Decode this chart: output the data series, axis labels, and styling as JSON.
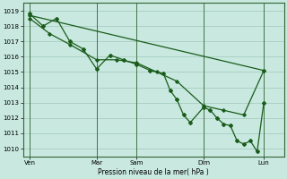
{
  "background_color": "#c8e8e0",
  "grid_color": "#a0c8b8",
  "line_color": "#1a5c1a",
  "xlabel": "Pression niveau de la mer( hPa )",
  "ylim": [
    1009.5,
    1019.5
  ],
  "yticks": [
    1010,
    1011,
    1012,
    1013,
    1014,
    1015,
    1016,
    1017,
    1018,
    1019
  ],
  "xtick_labels": [
    "Ven",
    "Mar",
    "Sam",
    "Dim",
    "Lun"
  ],
  "xtick_positions": [
    0.5,
    5.5,
    8.5,
    13.5,
    18.0
  ],
  "xlim": [
    0.0,
    19.5
  ],
  "series_trend_x": [
    0.5,
    18.0
  ],
  "series_trend_y": [
    1018.7,
    1015.1
  ],
  "series_smooth_x": [
    0.5,
    2.0,
    3.5,
    5.5,
    7.0,
    8.5,
    10.0,
    11.5,
    13.5,
    15.0,
    16.5,
    18.0
  ],
  "series_smooth_y": [
    1018.5,
    1017.5,
    1016.8,
    1015.8,
    1015.8,
    1015.6,
    1015.0,
    1014.4,
    1012.8,
    1012.5,
    1012.2,
    1015.1
  ],
  "series_jagged_x": [
    0.5,
    1.5,
    2.5,
    3.5,
    4.5,
    5.5,
    6.5,
    7.5,
    8.5,
    9.5,
    10.5,
    11.0,
    11.5,
    12.0,
    12.5,
    13.5,
    14.0,
    14.5,
    15.0,
    15.5,
    16.0,
    16.5,
    17.0,
    17.5,
    18.0
  ],
  "series_jagged_y": [
    1018.8,
    1018.0,
    1018.5,
    1017.0,
    1016.5,
    1015.2,
    1016.1,
    1015.8,
    1015.5,
    1015.1,
    1014.9,
    1013.8,
    1013.2,
    1012.2,
    1011.7,
    1012.7,
    1012.5,
    1012.0,
    1011.6,
    1011.5,
    1010.5,
    1010.3,
    1010.5,
    1009.8,
    1013.0
  ],
  "vline_positions": [
    0.5,
    5.5,
    8.5,
    13.5,
    18.0
  ],
  "vline_color": "#336633",
  "spine_color": "#336633"
}
